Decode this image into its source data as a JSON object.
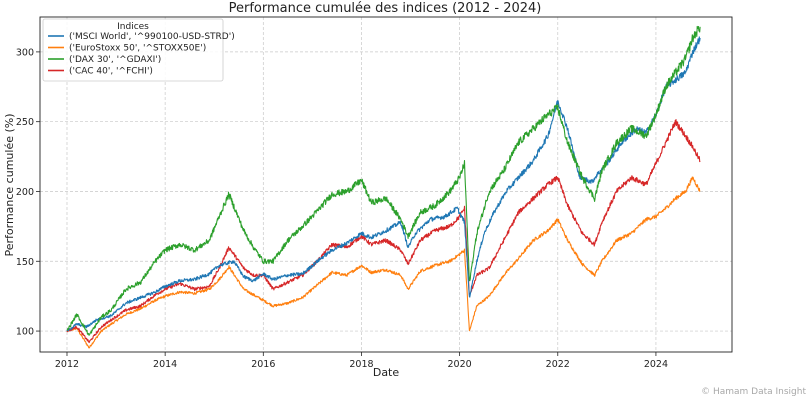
{
  "chart_data": {
    "type": "line",
    "title": "Performance cumulée des indices (2012 - 2024)",
    "xlabel": "Date",
    "ylabel": "Performance cumulée (%)",
    "xlim": [
      2011.45,
      2025.55
    ],
    "ylim": [
      85,
      325
    ],
    "x_ticks": [
      2012,
      2014,
      2016,
      2018,
      2020,
      2022,
      2024
    ],
    "y_ticks": [
      100,
      150,
      200,
      250,
      300
    ],
    "grid": true,
    "legend": {
      "title": "Indices",
      "placement": "top-left"
    },
    "series": [
      {
        "name": "('MSCI World', '^990100-USD-STRD')",
        "color": "#1f77b4",
        "x": [
          2012.0,
          2012.2,
          2012.4,
          2012.6,
          2012.9,
          2013.2,
          2013.5,
          2013.8,
          2014.0,
          2014.3,
          2014.6,
          2014.9,
          2015.1,
          2015.4,
          2015.6,
          2015.8,
          2016.0,
          2016.2,
          2016.5,
          2016.8,
          2017.1,
          2017.4,
          2017.7,
          2018.0,
          2018.2,
          2018.5,
          2018.8,
          2018.95,
          2019.1,
          2019.4,
          2019.7,
          2019.95,
          2020.1,
          2020.2,
          2020.35,
          2020.5,
          2020.7,
          2020.95,
          2021.2,
          2021.5,
          2021.8,
          2022.0,
          2022.2,
          2022.45,
          2022.7,
          2022.8,
          2023.0,
          2023.3,
          2023.6,
          2023.8,
          2024.0,
          2024.2,
          2024.4,
          2024.6,
          2024.75,
          2024.9
        ],
        "y": [
          100,
          105,
          103,
          108,
          111,
          120,
          124,
          128,
          132,
          136,
          137,
          141,
          147,
          150,
          139,
          136,
          141,
          137,
          140,
          141,
          150,
          158,
          163,
          170,
          167,
          172,
          178,
          160,
          170,
          180,
          182,
          188,
          178,
          124,
          150,
          170,
          185,
          200,
          210,
          222,
          240,
          265,
          245,
          210,
          207,
          212,
          220,
          235,
          245,
          242,
          255,
          275,
          280,
          285,
          300,
          310
        ]
      },
      {
        "name": "('EuroStoxx 50', '^STOXX50E')",
        "color": "#ff7f0e",
        "x": [
          2012.0,
          2012.2,
          2012.45,
          2012.7,
          2012.9,
          2013.2,
          2013.5,
          2013.8,
          2014.0,
          2014.3,
          2014.6,
          2014.9,
          2015.1,
          2015.3,
          2015.6,
          2015.8,
          2016.0,
          2016.2,
          2016.5,
          2016.8,
          2017.1,
          2017.4,
          2017.7,
          2018.0,
          2018.2,
          2018.5,
          2018.8,
          2018.95,
          2019.2,
          2019.5,
          2019.8,
          2020.0,
          2020.1,
          2020.2,
          2020.35,
          2020.6,
          2020.9,
          2021.2,
          2021.5,
          2021.8,
          2022.0,
          2022.2,
          2022.5,
          2022.75,
          2022.9,
          2023.2,
          2023.5,
          2023.8,
          2024.0,
          2024.2,
          2024.4,
          2024.6,
          2024.75,
          2024.9
        ],
        "y": [
          100,
          102,
          88,
          100,
          105,
          112,
          116,
          122,
          125,
          128,
          127,
          130,
          137,
          146,
          130,
          126,
          122,
          118,
          120,
          124,
          133,
          142,
          140,
          147,
          142,
          144,
          140,
          130,
          143,
          147,
          150,
          155,
          158,
          100,
          118,
          125,
          140,
          152,
          165,
          172,
          180,
          165,
          148,
          140,
          150,
          165,
          170,
          180,
          182,
          188,
          195,
          200,
          210,
          200
        ]
      },
      {
        "name": "('DAX 30', '^GDAXI')",
        "color": "#2ca02c",
        "x": [
          2012.0,
          2012.2,
          2012.45,
          2012.7,
          2012.9,
          2013.2,
          2013.5,
          2013.8,
          2014.0,
          2014.3,
          2014.6,
          2014.9,
          2015.1,
          2015.3,
          2015.6,
          2015.8,
          2016.0,
          2016.2,
          2016.5,
          2016.8,
          2017.1,
          2017.4,
          2017.7,
          2018.0,
          2018.2,
          2018.5,
          2018.8,
          2018.95,
          2019.2,
          2019.5,
          2019.8,
          2020.0,
          2020.1,
          2020.2,
          2020.35,
          2020.6,
          2020.9,
          2021.2,
          2021.5,
          2021.8,
          2022.0,
          2022.2,
          2022.5,
          2022.75,
          2022.9,
          2023.2,
          2023.5,
          2023.8,
          2024.0,
          2024.2,
          2024.4,
          2024.6,
          2024.75,
          2024.9
        ],
        "y": [
          100,
          112,
          97,
          110,
          115,
          130,
          135,
          150,
          158,
          162,
          158,
          165,
          182,
          198,
          172,
          160,
          150,
          150,
          165,
          175,
          186,
          198,
          200,
          208,
          192,
          195,
          180,
          168,
          185,
          190,
          200,
          210,
          220,
          135,
          170,
          200,
          215,
          235,
          245,
          255,
          260,
          235,
          210,
          195,
          215,
          235,
          245,
          240,
          255,
          275,
          285,
          295,
          310,
          318
        ]
      },
      {
        "name": "('CAC 40', '^FCHI')",
        "color": "#d62728",
        "x": [
          2012.0,
          2012.2,
          2012.45,
          2012.7,
          2012.9,
          2013.2,
          2013.5,
          2013.8,
          2014.0,
          2014.3,
          2014.6,
          2014.9,
          2015.1,
          2015.3,
          2015.6,
          2015.8,
          2016.0,
          2016.2,
          2016.5,
          2016.8,
          2017.1,
          2017.4,
          2017.7,
          2018.0,
          2018.2,
          2018.5,
          2018.8,
          2018.95,
          2019.2,
          2019.5,
          2019.8,
          2020.0,
          2020.1,
          2020.2,
          2020.35,
          2020.6,
          2020.9,
          2021.2,
          2021.5,
          2021.8,
          2022.0,
          2022.2,
          2022.5,
          2022.75,
          2022.9,
          2023.2,
          2023.5,
          2023.8,
          2024.0,
          2024.2,
          2024.4,
          2024.6,
          2024.75,
          2024.9
        ],
        "y": [
          100,
          103,
          92,
          103,
          108,
          115,
          118,
          126,
          130,
          134,
          130,
          132,
          145,
          160,
          145,
          140,
          140,
          130,
          135,
          140,
          150,
          162,
          160,
          168,
          162,
          165,
          158,
          148,
          165,
          172,
          175,
          182,
          188,
          125,
          140,
          145,
          165,
          185,
          195,
          205,
          210,
          190,
          170,
          162,
          178,
          200,
          210,
          205,
          220,
          235,
          250,
          240,
          232,
          222
        ]
      }
    ]
  },
  "watermark": "© Hamam Data Insight"
}
